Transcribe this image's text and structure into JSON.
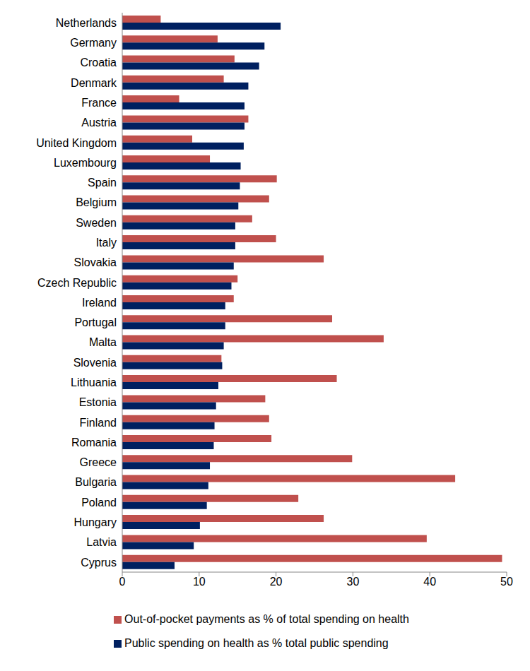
{
  "chart_data": {
    "type": "bar",
    "orientation": "horizontal",
    "grid": false,
    "legend": "bottom",
    "categories": [
      "Netherlands",
      "Germany",
      "Croatia",
      "Denmark",
      "France",
      "Austria",
      "United Kingdom",
      "Luxembourg",
      "Spain",
      "Belgium",
      "Sweden",
      "Italy",
      "Slovakia",
      "Czech Republic",
      "Ireland",
      "Portugal",
      "Malta",
      "Slovenia",
      "Lithuania",
      "Estonia",
      "Finland",
      "Romania",
      "Greece",
      "Bulgaria",
      "Poland",
      "Hungary",
      "Latvia",
      "Cyprus"
    ],
    "series": [
      {
        "name": "Out-of-pocket payments as % of total spending on health",
        "color": "#c0504d",
        "values": [
          5.0,
          12.4,
          14.6,
          13.2,
          7.4,
          16.4,
          9.1,
          11.4,
          20.1,
          19.1,
          16.9,
          20.0,
          26.2,
          15.0,
          14.5,
          27.3,
          34.0,
          12.9,
          27.9,
          18.6,
          19.1,
          19.4,
          29.9,
          43.3,
          22.9,
          26.2,
          39.6,
          49.4
        ]
      },
      {
        "name": "Public spending on health as % total public spending",
        "color": "#002060",
        "values": [
          20.6,
          18.5,
          17.8,
          16.4,
          15.9,
          15.9,
          15.8,
          15.4,
          15.3,
          15.1,
          14.7,
          14.7,
          14.5,
          14.2,
          13.4,
          13.4,
          13.2,
          13.0,
          12.5,
          12.2,
          12.0,
          11.9,
          11.4,
          11.2,
          11.0,
          10.1,
          9.3,
          6.8
        ]
      }
    ],
    "xlim": [
      0,
      50
    ],
    "xticks": [
      0,
      10,
      20,
      30,
      40,
      50
    ]
  }
}
